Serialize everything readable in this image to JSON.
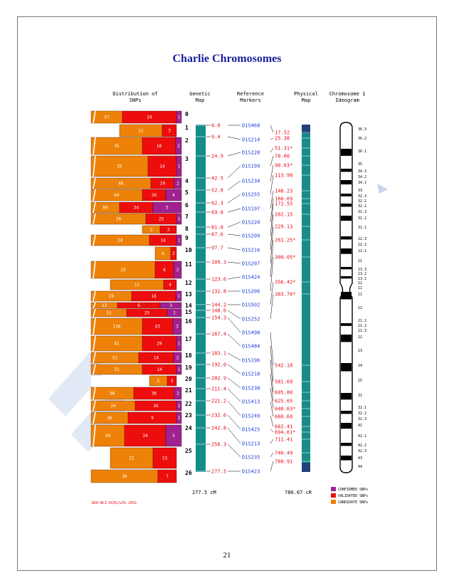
{
  "page": {
    "title": "Charlie Chromosomes",
    "page_number": "21"
  },
  "figure": {
    "headers": {
      "distribution": [
        "Distribution of",
        "SNPs"
      ],
      "genetic": [
        "Genetic",
        "Map"
      ],
      "reference": [
        "Reference",
        "Markers"
      ],
      "physical": [
        "Physical",
        "Map"
      ],
      "ideogram": [
        "Chromosome 1",
        "Ideogram"
      ]
    },
    "colors": {
      "confirmed": "#a0228f",
      "validated": "#ee0d0d",
      "candidate": "#ee8209",
      "genetic_bar": "#148c8a",
      "physical_bar": "#1a8b86",
      "marker_text": "#1d3fd6",
      "value_text": "#e8101a"
    },
    "rows": [
      {
        "label": "0",
        "candidate": "57",
        "validated": "24",
        "confirmed": "1",
        "white": ""
      },
      {
        "label": "1",
        "candidate": "11",
        "validated": "3",
        "confirmed": "",
        "white": "w"
      },
      {
        "label": "2",
        "candidate": "35",
        "validated": "18",
        "confirmed": "2",
        "white": ""
      },
      {
        "label": "3",
        "candidate": "25",
        "validated": "14",
        "confirmed": "1",
        "white": ""
      },
      {
        "label": "4",
        "candidate": "46",
        "validated": "29",
        "confirmed": "2",
        "white": ""
      },
      {
        "label": "5",
        "candidate": "64",
        "validated": "26",
        "confirmed": "4",
        "white": ""
      },
      {
        "label": "6",
        "candidate": "89",
        "validated": "34",
        "confirmed": "5",
        "white": ""
      },
      {
        "label": "7",
        "candidate": "36",
        "validated": "25",
        "confirmed": "1",
        "white": ""
      },
      {
        "label": "8",
        "candidate": "2",
        "validated": "3",
        "confirmed": "",
        "white": "w"
      },
      {
        "label": "9",
        "candidate": "24",
        "validated": "14",
        "confirmed": "1",
        "white": ""
      },
      {
        "label": "10",
        "candidate": "6",
        "validated": "2",
        "confirmed": "",
        "white": "w"
      },
      {
        "label": "11",
        "candidate": "25",
        "validated": "6",
        "confirmed": "2",
        "white": ""
      },
      {
        "label": "12",
        "candidate": "12",
        "validated": "4",
        "confirmed": "",
        "white": "w"
      },
      {
        "label": "13",
        "candidate": "29",
        "validated": "18",
        "confirmed": "1",
        "white": ""
      },
      {
        "label": "14",
        "candidate": "13",
        "validated": "6",
        "confirmed": "3",
        "white": ""
      },
      {
        "label": "15",
        "candidate": "52",
        "validated": "25",
        "confirmed": "2",
        "white": ""
      },
      {
        "label": "16",
        "candidate": "116",
        "validated": "63",
        "confirmed": "3",
        "white": ""
      },
      {
        "label": "17",
        "candidate": "41",
        "validated": "28",
        "confirmed": "1",
        "white": ""
      },
      {
        "label": "18",
        "candidate": "51",
        "validated": "14",
        "confirmed": "2",
        "white": ""
      },
      {
        "label": "19",
        "candidate": "31",
        "validated": "14",
        "confirmed": "1",
        "white": ""
      },
      {
        "label": "20",
        "candidate": "5",
        "validated": "3",
        "confirmed": "",
        "white": "w"
      },
      {
        "label": "21",
        "candidate": "66",
        "validated": "36",
        "confirmed": "2",
        "white": ""
      },
      {
        "label": "22",
        "candidate": "24",
        "validated": "26",
        "confirmed": "1",
        "white": ""
      },
      {
        "label": "23",
        "candidate": "26",
        "validated": "9",
        "confirmed": "1",
        "white": ""
      },
      {
        "label": "24",
        "candidate": "59",
        "validated": "34",
        "confirmed": "5",
        "white": ""
      },
      {
        "label": "25",
        "candidate": "21",
        "validated": "13",
        "confirmed": "",
        "white": "w"
      },
      {
        "label": "26",
        "candidate": "36",
        "validated": "7",
        "confirmed": "",
        "white": "w"
      }
    ],
    "genetic_values": [
      "0.0",
      "9.4",
      "24.9",
      "42.5",
      "52.0",
      "62.3",
      "69.8",
      "81.8",
      "87.6",
      "97.7",
      "109.3",
      "123.6",
      "132.8",
      "144.2",
      "148.6",
      "154.3",
      "167.4",
      "183.1",
      "192.0",
      "202.9",
      "211.4",
      "221.2",
      "232.6",
      "242.8",
      "256.3",
      "277.5"
    ],
    "markers": [
      "D1S468",
      "D1S214",
      "D1S228",
      "D1S199",
      "D1S234",
      "D1S255",
      "D1S197",
      "D1S220",
      "D1S209",
      "D1S216",
      "D1S207",
      "D1S424",
      "D1S206",
      "D1S502",
      "D1S252",
      "D1S498",
      "D1S484",
      "D1S196",
      "D1S218",
      "D1S238",
      "D1S413",
      "D1S249",
      "D1S425",
      "D1S213",
      "D1S235",
      "D1S423"
    ],
    "physical_values": [
      "17.52",
      "25.38",
      "51.31*",
      "70.60",
      "90.63*",
      "113.98",
      "148.23",
      "166.69",
      "172.55",
      "202.15",
      "229.13",
      "261.25*",
      "300.05*",
      "356.42*",
      "383.76*",
      "542.18",
      "581.69",
      "605.80",
      "625.65",
      "640.63*",
      "660.60",
      "682.41",
      "694.61*",
      "711.41",
      "740.49",
      "760.91"
    ],
    "ideogram_bands": [
      "36.3",
      "36.2",
      "36.1",
      "35",
      "34.3",
      "34.2",
      "34.1",
      "33",
      "32.3",
      "32.2",
      "32.1",
      "31.3",
      "31.2",
      "31.1",
      "22.3",
      "22.2",
      "22.1",
      "21",
      "13.3",
      "13.2",
      "13.1",
      "12",
      "11",
      "11",
      "12",
      "21.1",
      "21.2",
      "21.3",
      "22",
      "23",
      "24",
      "25",
      "31",
      "32.1",
      "32.2",
      "32.3",
      "41",
      "42.1",
      "42.2",
      "42.3",
      "43",
      "44"
    ],
    "footer": {
      "genetic_total": "277.5 cM",
      "physical_total": "780.67 cR"
    },
    "legend": [
      "CONFIRMED SNPs",
      "VALIDATED SNPs",
      "CANDIDATE SNPs"
    ],
    "credit": "NIH-NCI-DCEG/LPG 2001"
  }
}
